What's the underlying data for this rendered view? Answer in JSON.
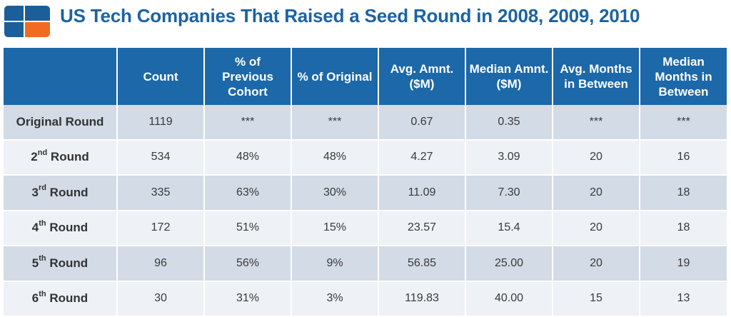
{
  "title": "US Tech Companies That Raised a Seed Round in 2008, 2009, 2010",
  "colors": {
    "header_blue": "#1c68a8",
    "logo_blue": "#1b5e9a",
    "logo_orange": "#f36b22",
    "row_dark": "#d3dbe6",
    "row_light": "#eef1f5"
  },
  "logo": {
    "icon": "cb-logo-icon"
  },
  "chart_data": {
    "type": "table",
    "title": "US Tech Companies That Raised a Seed Round in 2008, 2009, 2010",
    "columns": [
      "",
      "Count",
      "% of Previous Cohort",
      "% of Original",
      "Avg. Amnt. ($M)",
      "Median Amnt. ($M)",
      "Avg. Months in Between",
      "Median Months in Between"
    ],
    "rows": [
      {
        "label": "Original Round",
        "ord": "",
        "suffix": "",
        "values": [
          "1119",
          "***",
          "***",
          "0.67",
          "0.35",
          "***",
          "***"
        ]
      },
      {
        "label": "",
        "ord": "2",
        "sup": "nd",
        "suffix": " Round",
        "values": [
          "534",
          "48%",
          "48%",
          "4.27",
          "3.09",
          "20",
          "16"
        ]
      },
      {
        "label": "",
        "ord": "3",
        "sup": "rd",
        "suffix": " Round",
        "values": [
          "335",
          "63%",
          "30%",
          "11.09",
          "7.30",
          "20",
          "18"
        ]
      },
      {
        "label": "",
        "ord": "4",
        "sup": "th",
        "suffix": " Round",
        "values": [
          "172",
          "51%",
          "15%",
          "23.57",
          "15.4",
          "20",
          "18"
        ]
      },
      {
        "label": "",
        "ord": "5",
        "sup": "th",
        "suffix": " Round",
        "values": [
          "96",
          "56%",
          "9%",
          "56.85",
          "25.00",
          "20",
          "19"
        ]
      },
      {
        "label": "",
        "ord": "6",
        "sup": "th",
        "suffix": " Round",
        "values": [
          "30",
          "31%",
          "3%",
          "119.83",
          "40.00",
          "15",
          "13"
        ]
      }
    ]
  }
}
